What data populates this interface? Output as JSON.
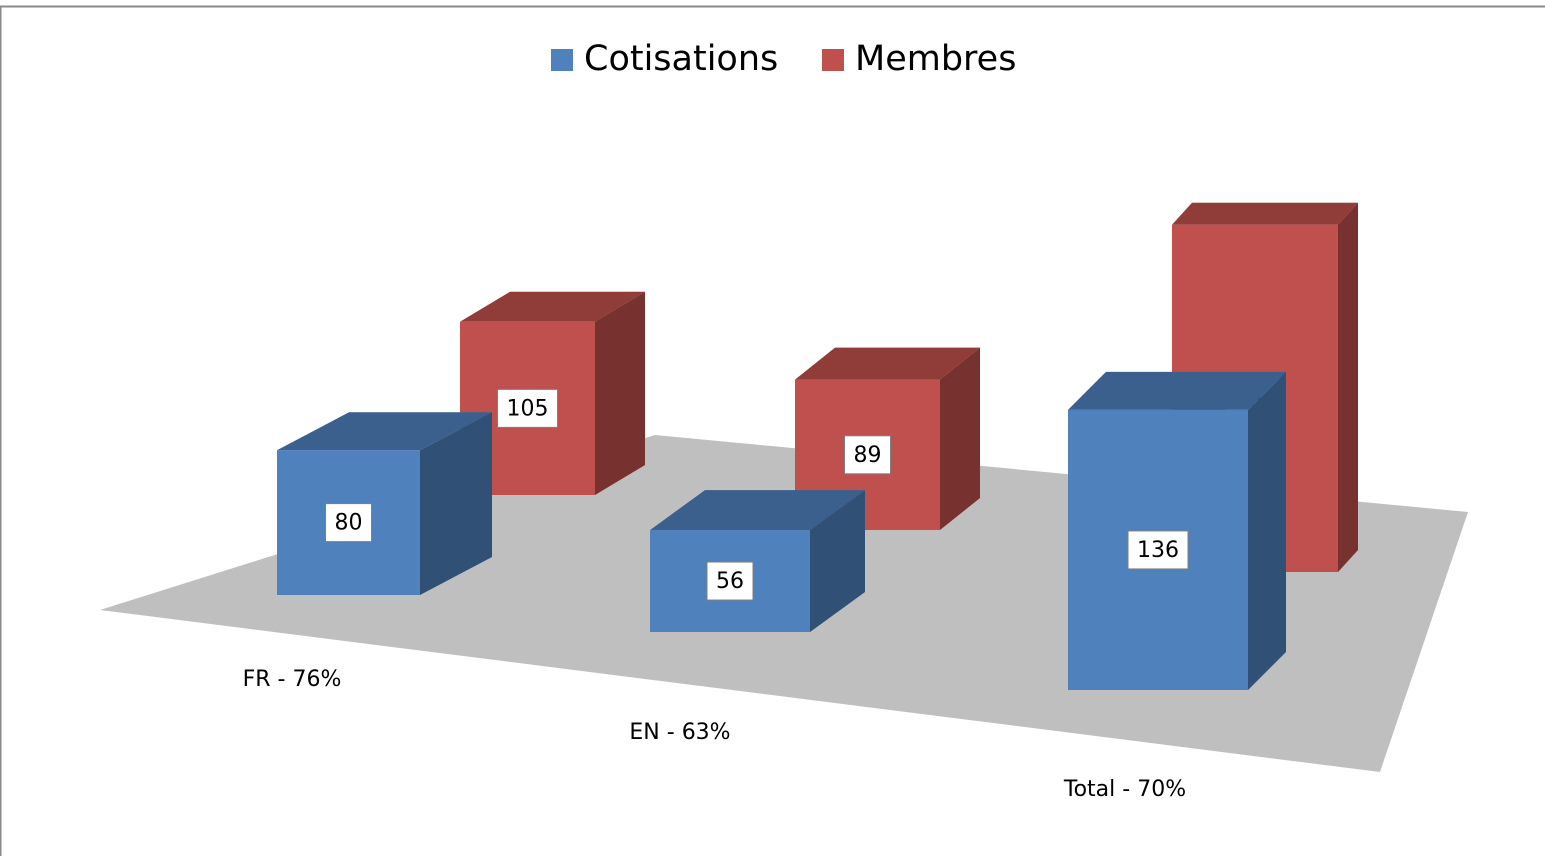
{
  "chart_data": {
    "type": "bar3d",
    "categories": [
      "FR - 76%",
      "EN - 63%",
      "Total - 70%"
    ],
    "series": [
      {
        "name": "Cotisations",
        "color": "#4f81bd",
        "values": [
          80,
          56,
          136
        ]
      },
      {
        "name": "Membres",
        "color": "#c0504d",
        "values": [
          105,
          89,
          194
        ]
      }
    ],
    "legend": "top"
  }
}
